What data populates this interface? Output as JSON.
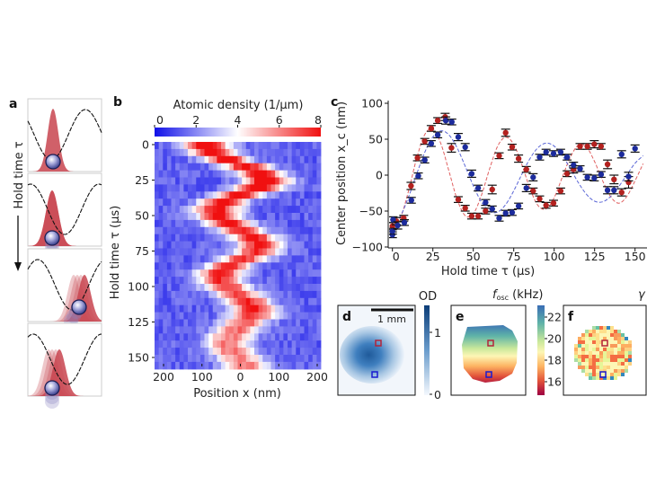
{
  "panel_labels": {
    "a": "a",
    "b": "b",
    "c": "c",
    "d": "d",
    "e": "e",
    "f": "f"
  },
  "panel_a": {
    "axis_label": "Hold time τ"
  },
  "colors": {
    "red_series": "#b3211f",
    "blue_series": "#1c2b9c",
    "red_fit": "#e06060",
    "blue_fit": "#5a66d6"
  },
  "chart_data": [
    {
      "type": "heatmap",
      "panel": "b",
      "colorbar_title": "Atomic density (1/µm)",
      "colorbar_ticks": [
        "0",
        "2",
        "4",
        "6",
        "8"
      ],
      "colorbar_range": [
        0,
        8
      ],
      "colormap": "blue-white-red",
      "xlabel": "Position x (nm)",
      "ylabel": "Hold time τ (µs)",
      "x_ticks": [
        "200",
        "100",
        "0",
        "100",
        "200"
      ],
      "y_ticks": [
        "0",
        "25",
        "50",
        "75",
        "100",
        "125",
        "150"
      ],
      "xlim": [
        -200,
        200
      ],
      "ylim": [
        0,
        155
      ],
      "row_times_us": [
        0,
        5,
        10,
        15,
        20,
        25,
        30,
        35,
        40,
        45,
        50,
        55,
        60,
        65,
        70,
        75,
        80,
        85,
        90,
        95,
        100,
        105,
        110,
        115,
        120,
        125,
        130,
        135,
        140,
        145,
        150,
        155
      ],
      "profile_center_nm": [
        -75,
        -60,
        -25,
        20,
        55,
        70,
        50,
        5,
        -35,
        -50,
        -45,
        -20,
        10,
        40,
        55,
        45,
        15,
        -20,
        -40,
        -42,
        -25,
        0,
        25,
        40,
        35,
        15,
        -5,
        -20,
        -25,
        -15,
        5,
        20
      ],
      "profile_peak_density": [
        7.5,
        7.3,
        7.0,
        7.0,
        7.3,
        7.6,
        7.4,
        7.0,
        7.0,
        7.0,
        6.9,
        6.5,
        6.4,
        6.6,
        6.6,
        6.4,
        6.1,
        6.2,
        6.4,
        6.3,
        6.2,
        6.1,
        6.5,
        6.6,
        6.2,
        5.5,
        5.2,
        5.0,
        5.0,
        5.0,
        5.0,
        5.0
      ]
    },
    {
      "type": "scatter",
      "panel": "c",
      "xlabel": "Hold time τ (µs)",
      "ylabel": "Center position x_c (nm)",
      "x_ticks": [
        "0",
        "25",
        "50",
        "75",
        "100",
        "125",
        "150"
      ],
      "y_ticks": [
        "100",
        "50",
        "0",
        "−50",
        "−100"
      ],
      "xlim": [
        0,
        155
      ],
      "ylim": [
        -100,
        100
      ],
      "series": [
        {
          "color": "red",
          "points": [
            [
              0,
              -71,
              5
            ],
            [
              2.4,
              -64,
              5
            ],
            [
              7,
              -60,
              4
            ],
            [
              11.5,
              -15,
              5
            ],
            [
              15.5,
              24,
              4
            ],
            [
              20,
              47,
              4
            ],
            [
              24,
              65,
              4
            ],
            [
              28,
              76,
              4
            ],
            [
              32.6,
              81,
              5
            ],
            [
              36.5,
              38,
              6
            ],
            [
              40.7,
              -34,
              4
            ],
            [
              45,
              -46,
              4
            ],
            [
              49,
              -57,
              4
            ],
            [
              53,
              -57,
              4
            ],
            [
              57.6,
              -50,
              4
            ],
            [
              61.7,
              -20,
              6
            ],
            [
              66,
              27,
              4
            ],
            [
              70,
              59,
              5
            ],
            [
              74,
              39,
              4
            ],
            [
              78,
              23,
              5
            ],
            [
              82.8,
              8,
              4
            ],
            [
              87,
              -22,
              4
            ],
            [
              91,
              -33,
              4
            ],
            [
              95,
              -42,
              4
            ],
            [
              99.6,
              -39,
              4
            ],
            [
              104,
              -22,
              4
            ],
            [
              108,
              2,
              4
            ],
            [
              112,
              8,
              5
            ],
            [
              116,
              40,
              4
            ],
            [
              120.5,
              40,
              4
            ],
            [
              124.8,
              43,
              5
            ],
            [
              129,
              40,
              4
            ],
            [
              133,
              15,
              6
            ],
            [
              137,
              -6,
              6
            ],
            [
              141.7,
              -24,
              5
            ],
            [
              146,
              -10,
              8
            ]
          ],
          "fit": {
            "t": [
              0,
              5,
              10,
              15,
              20,
              25,
              30,
              35,
              40,
              45,
              50,
              55,
              60,
              65,
              70,
              75,
              80,
              85,
              90,
              95,
              100,
              105,
              110,
              115,
              120,
              125,
              130,
              135,
              140,
              145,
              150,
              155
            ],
            "y": [
              -71.6,
              -59.1,
              -21.8,
              23.5,
              56.5,
              63.9,
              43.5,
              5.2,
              -33.6,
              -56.4,
              -53.8,
              -28.2,
              8.2,
              40.1,
              52.8,
              42.8,
              14.8,
              -18.4,
              -42.3,
              -46.9,
              -31.4,
              -3.0,
              25.0,
              41.9,
              39.0,
              18.8,
              -8.0,
              -30.2,
              -39.0,
              -29.3,
              -7.9,
              16.0
            ]
          }
        },
        {
          "color": "blue",
          "points": [
            [
              0,
              -83,
              4
            ],
            [
              0,
              -78,
              4
            ],
            [
              0.4,
              -62,
              4
            ],
            [
              3.3,
              -70,
              5
            ],
            [
              7.4,
              -66,
              4
            ],
            [
              11.7,
              -35,
              4
            ],
            [
              16,
              -1,
              4
            ],
            [
              20,
              21,
              4
            ],
            [
              24,
              44,
              4
            ],
            [
              28,
              56,
              4
            ],
            [
              33,
              76,
              5
            ],
            [
              36.7,
              74,
              4
            ],
            [
              40.7,
              53,
              5
            ],
            [
              45,
              39,
              5
            ],
            [
              49,
              2,
              5
            ],
            [
              53,
              -18,
              4
            ],
            [
              57.6,
              -38,
              4
            ],
            [
              61.7,
              -47,
              4
            ],
            [
              66,
              -60,
              4
            ],
            [
              70,
              -53,
              4
            ],
            [
              74,
              -52,
              4
            ],
            [
              78,
              -43,
              4
            ],
            [
              82.8,
              -18,
              5
            ],
            [
              87,
              -3,
              5
            ],
            [
              91,
              25,
              4
            ],
            [
              95,
              32,
              4
            ],
            [
              99.6,
              30,
              4
            ],
            [
              104,
              32,
              4
            ],
            [
              108,
              25,
              4
            ],
            [
              112,
              14,
              4
            ],
            [
              116,
              9,
              4
            ],
            [
              120.5,
              -3,
              4
            ],
            [
              124.8,
              -4,
              4
            ],
            [
              129,
              1,
              4
            ],
            [
              133,
              -21,
              5
            ],
            [
              137,
              -21,
              5
            ],
            [
              141.7,
              29,
              5
            ],
            [
              146,
              -2,
              6
            ],
            [
              150,
              37,
              5
            ]
          ],
          "fit": {
            "t": [
              0,
              5,
              10,
              15,
              20,
              25,
              30,
              35,
              40,
              45,
              50,
              55,
              60,
              65,
              70,
              75,
              80,
              85,
              90,
              95,
              100,
              105,
              110,
              115,
              120,
              125,
              130,
              135,
              140,
              145,
              150,
              155
            ],
            "y": [
              -71.3,
              -56.8,
              -30.3,
              1.6,
              31.7,
              53.1,
              61.6,
              55.9,
              38.0,
              12.4,
              -14.7,
              -37.2,
              -50.3,
              -51.4,
              -41.0,
              -21.9,
              1.2,
              22.9,
              38.3,
              44.5,
              40.4,
              27.4,
              9.0,
              -10.6,
              -26.8,
              -36.3,
              -37.1,
              -29.5,
              -15.8,
              0.8,
              16.5,
              27.0
            ]
          }
        }
      ]
    }
  ],
  "panel_d": {
    "colorbar_title": "OD",
    "colorbar_ticks": [
      "1",
      "0"
    ],
    "scale_bar": "1 mm"
  },
  "panel_e": {
    "colorbar_title_main": "f",
    "colorbar_title_sub": "osc",
    "colorbar_title_unit": " (kHz)",
    "colorbar_ticks": [
      "22",
      "20",
      "18",
      "16"
    ],
    "colormap": "spectral"
  },
  "panel_f": {
    "colorbar_title": "γ"
  }
}
